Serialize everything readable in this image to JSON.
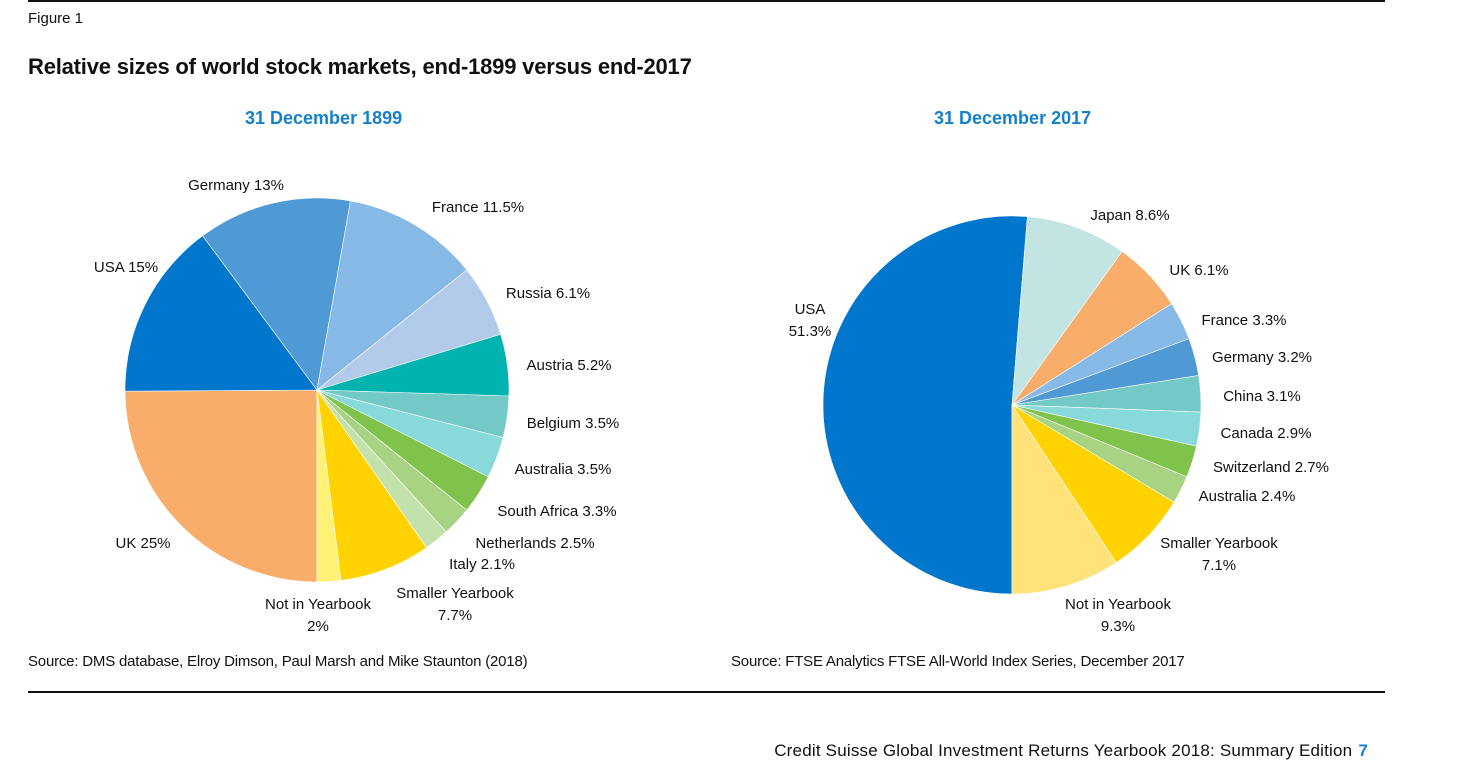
{
  "figure_label": "Figure 1",
  "title": "Relative sizes of world stock markets, end-1899 versus end-2017",
  "footer": {
    "text": "Credit Suisse Global Investment Returns Yearbook 2018: Summary Edition",
    "page": "7"
  },
  "chart_data": [
    {
      "type": "pie",
      "title": "31 December 1899",
      "start": "bottom",
      "direction": "clockwise",
      "source": "Source:  DMS database, Elroy Dimson, Paul Marsh and Mike Staunton (2018)",
      "slices": [
        {
          "label": "UK",
          "value": 25,
          "display": "UK 25%",
          "color": "#f8ad6a"
        },
        {
          "label": "USA",
          "value": 15,
          "display": "USA 15%",
          "color": "#0077cc"
        },
        {
          "label": "Germany",
          "value": 13,
          "display": "Germany 13%",
          "color": "#4f9ad4"
        },
        {
          "label": "France",
          "value": 11.5,
          "display": "France 11.5%",
          "color": "#87b9e7"
        },
        {
          "label": "Russia",
          "value": 6.1,
          "display": "Russia 6.1%",
          "color": "#b2cbea"
        },
        {
          "label": "Austria",
          "value": 5.2,
          "display": "Austria 5.2%",
          "color": "#00b3ae"
        },
        {
          "label": "Belgium",
          "value": 3.5,
          "display": "Belgium 3.5%",
          "color": "#72c9c6"
        },
        {
          "label": "Australia",
          "value": 3.5,
          "display": "Australia 3.5%",
          "color": "#88dada"
        },
        {
          "label": "South Africa",
          "value": 3.3,
          "display": "South Africa 3.3%",
          "color": "#7fc34c"
        },
        {
          "label": "Netherlands",
          "value": 2.5,
          "display": "Netherlands 2.5%",
          "color": "#a7d382"
        },
        {
          "label": "Italy",
          "value": 2.1,
          "display": "Italy 2.1%",
          "color": "#c3e2ab"
        },
        {
          "label": "Smaller Yearbook",
          "value": 7.7,
          "display": "Smaller Yearbook|7.7%",
          "color": "#ffd200"
        },
        {
          "label": "Not in Yearbook",
          "value": 2,
          "display": "Not in Yearbook|2%",
          "color": "#fff176"
        }
      ]
    },
    {
      "type": "pie",
      "title": "31 December 2017",
      "start": "bottom",
      "direction": "clockwise",
      "source": "Source: FTSE Analytics FTSE All-World Index Series, December 2017",
      "slices": [
        {
          "label": "USA",
          "value": 51.3,
          "display": "USA|51.3%",
          "color": "#0077cc"
        },
        {
          "label": "Japan",
          "value": 8.6,
          "display": "Japan  8.6%",
          "color": "#c2e5e3"
        },
        {
          "label": "UK",
          "value": 6.1,
          "display": "UK 6.1%",
          "color": "#f8ad6a"
        },
        {
          "label": "France",
          "value": 3.3,
          "display": "France  3.3%",
          "color": "#87b9e7"
        },
        {
          "label": "Germany",
          "value": 3.2,
          "display": "Germany  3.2%",
          "color": "#4f9ad4"
        },
        {
          "label": "China",
          "value": 3.1,
          "display": "China 3.1%",
          "color": "#72c9c6"
        },
        {
          "label": "Canada",
          "value": 2.9,
          "display": "Canada  2.9%",
          "color": "#88dada"
        },
        {
          "label": "Switzerland",
          "value": 2.7,
          "display": "Switzerland  2.7%",
          "color": "#7fc34c"
        },
        {
          "label": "Australia",
          "value": 2.4,
          "display": "Australia  2.4%",
          "color": "#a7d382"
        },
        {
          "label": "Smaller Yearbook",
          "value": 7.1,
          "display": "Smaller  Yearbook|7.1%",
          "color": "#ffd200"
        },
        {
          "label": "Not in Yearbook",
          "value": 9.3,
          "display": "Not in Yearbook|9.3%",
          "color": "#ffe27a"
        }
      ]
    }
  ]
}
